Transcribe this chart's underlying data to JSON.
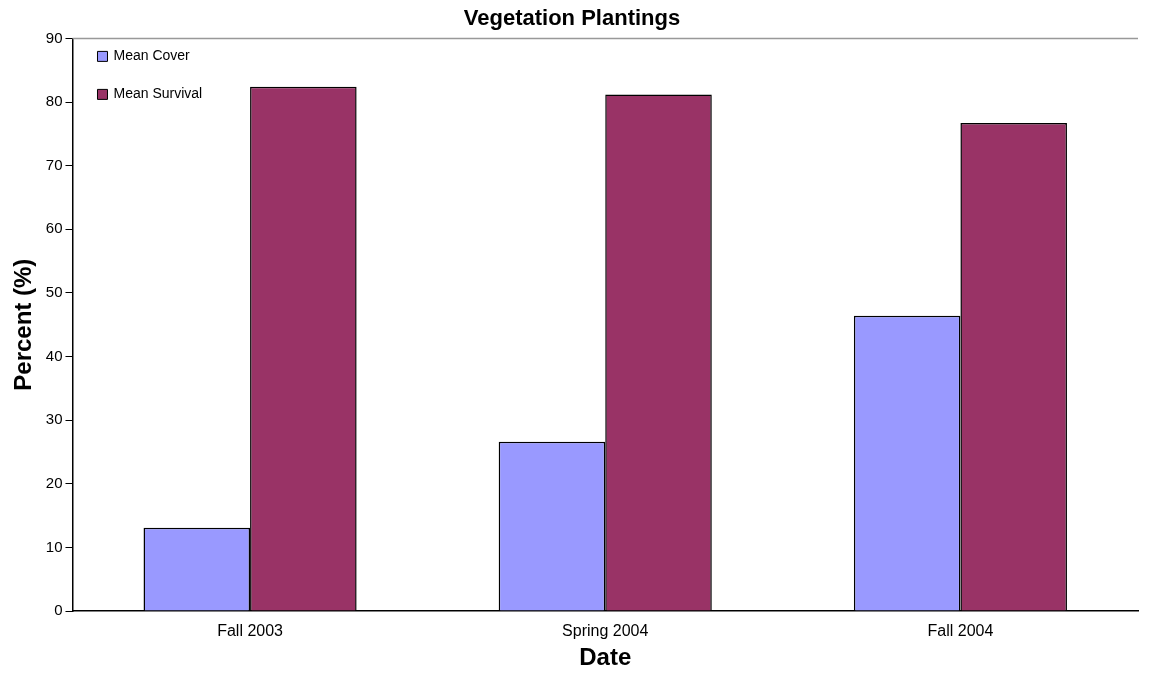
{
  "chart_data": {
    "type": "bar",
    "title": "Vegetation Plantings",
    "xlabel": "Date",
    "ylabel": "Percent (%)",
    "categories": [
      "Fall 2003",
      "Spring 2004",
      "Fall 2004"
    ],
    "series": [
      {
        "name": "Mean Cover",
        "color": "#9999ff",
        "values": [
          13.1,
          26.6,
          46.4
        ]
      },
      {
        "name": "Mean Survival",
        "color": "#993366",
        "values": [
          82.4,
          81.2,
          76.7
        ]
      }
    ],
    "ylim": [
      0,
      90
    ],
    "yticks": [
      0,
      10,
      20,
      30,
      40,
      50,
      60,
      70,
      80,
      90
    ],
    "grid": false,
    "legend": "top left"
  }
}
